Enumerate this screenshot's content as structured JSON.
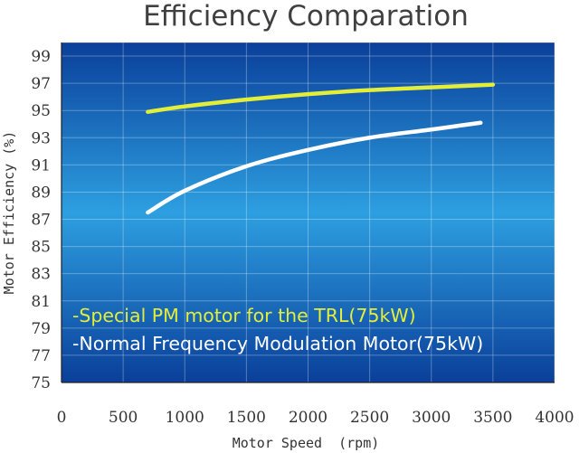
{
  "chart_data": {
    "type": "line",
    "title": "Efficiency Comparation",
    "xlabel": "Motor Speed  (rpm)",
    "ylabel": "Motor Efficiency (%)",
    "xlim": [
      0,
      4000
    ],
    "ylim": [
      75,
      100
    ],
    "xticks": [
      "0",
      "500",
      "1000",
      "1500",
      "2000",
      "2500",
      "3000",
      "3500",
      "4000"
    ],
    "yticks": [
      "75",
      "77",
      "79",
      "81",
      "83",
      "85",
      "87",
      "89",
      "91",
      "93",
      "95",
      "97",
      "99"
    ],
    "grid": true,
    "legend_position": "bottom-left",
    "background_colors": [
      "#0a3f9a",
      "#2d9fe0",
      "#0a3f9a"
    ],
    "series": [
      {
        "name": "-Special PM motor for the TRL(75kW)",
        "color": "#e3ee3a",
        "x": [
          700,
          1000,
          1500,
          2000,
          2500,
          3000,
          3500
        ],
        "y": [
          94.9,
          95.3,
          95.8,
          96.2,
          96.5,
          96.7,
          96.9
        ]
      },
      {
        "name": "-Normal Frequency Modulation Motor(75kW)",
        "color": "#ffffff",
        "x": [
          700,
          1000,
          1500,
          2000,
          2500,
          3000,
          3400
        ],
        "y": [
          87.5,
          89.1,
          90.9,
          92.1,
          93.0,
          93.6,
          94.1
        ]
      }
    ]
  }
}
